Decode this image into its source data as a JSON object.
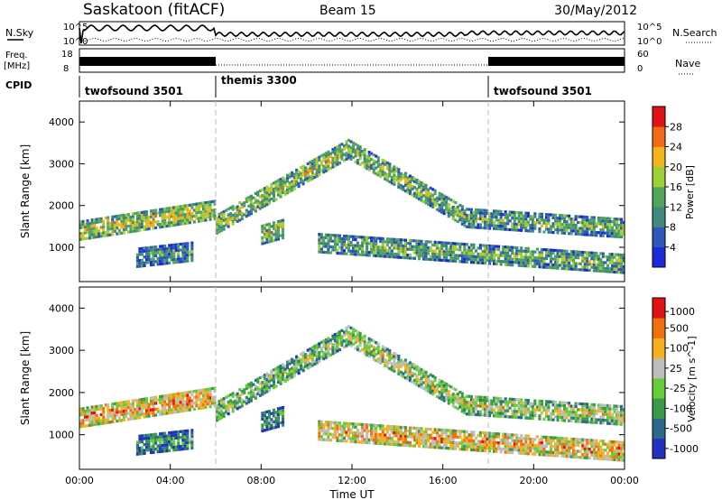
{
  "header": {
    "station": "Saskatoon (fitACF)",
    "beam": "Beam 15",
    "date": "30/May/2012"
  },
  "strips": {
    "nsky_label": "N.Sky",
    "nsearch_label": "N.Search",
    "noise_ticks": [
      "10^5",
      "10^0"
    ],
    "freq_label_1": "Freq.",
    "freq_label_2": "[MHz]",
    "freq_ticks": [
      "18",
      "8"
    ],
    "nave_label": "Nave",
    "nave_ticks": [
      "60",
      "0"
    ],
    "cpid_label": "CPID"
  },
  "cpid_segments": [
    {
      "name": "twofsound 3501",
      "start_h": 0,
      "end_h": 6
    },
    {
      "name": "themis 3300",
      "start_h": 6,
      "end_h": 18
    },
    {
      "name": "twofsound 3501",
      "start_h": 18,
      "end_h": 24
    }
  ],
  "axes": {
    "xlabel": "Time UT",
    "ylabel": "Slant Range [km]",
    "x_ticks": [
      "00:00",
      "04:00",
      "08:00",
      "12:00",
      "16:00",
      "20:00",
      "00:00"
    ],
    "y_ticks": [
      "1000",
      "2000",
      "3000",
      "4000"
    ]
  },
  "chart_data": [
    {
      "type": "heatmap",
      "panel": "power",
      "x_range_hours": [
        0,
        24
      ],
      "y_range_km": [
        180,
        4500
      ],
      "colorbar_label": "Power [dB]",
      "colorbar_ticks": [
        "4",
        "8",
        "12",
        "16",
        "20",
        "24",
        "28"
      ],
      "colors": [
        "#1e2ad8",
        "#2d57b8",
        "#3f8a7a",
        "#52a35e",
        "#9ecf36",
        "#f2b41c",
        "#f06a1a",
        "#e01414"
      ],
      "bands": [
        {
          "t_start": 0,
          "t_end": 6,
          "r_start": 1400,
          "r_end": 1900,
          "level": 0.55
        },
        {
          "t_start": 6,
          "t_end": 11.8,
          "r_start": 1550,
          "r_end": 3350,
          "level": 0.5
        },
        {
          "t_start": 11.8,
          "t_end": 17,
          "r_start": 3350,
          "r_end": 1700,
          "level": 0.45
        },
        {
          "t_start": 17,
          "t_end": 24,
          "r_start": 1700,
          "r_end": 1450,
          "level": 0.4
        },
        {
          "t_start": 2.5,
          "t_end": 5,
          "r_start": 750,
          "r_end": 900,
          "level": 0.3
        },
        {
          "t_start": 8,
          "t_end": 9,
          "r_start": 1300,
          "r_end": 1450,
          "level": 0.5
        },
        {
          "t_start": 10.5,
          "t_end": 24,
          "r_start": 1100,
          "r_end": 600,
          "level": 0.4
        }
      ]
    },
    {
      "type": "heatmap",
      "panel": "velocity",
      "x_range_hours": [
        0,
        24
      ],
      "y_range_km": [
        180,
        4500
      ],
      "colorbar_label": "Velocity [m s^-1]",
      "colorbar_ticks": [
        "1000",
        "500",
        "100",
        "25",
        "-25",
        "-100",
        "-500",
        "-1000"
      ],
      "colors": [
        "#2232c0",
        "#2c6a8c",
        "#3a9a4a",
        "#66cc3a",
        "#bdbdbd",
        "#f5b020",
        "#f07010",
        "#e01414"
      ],
      "bands": [
        {
          "t_start": 0,
          "t_end": 6,
          "r_start": 1400,
          "r_end": 1900,
          "level": 0.7
        },
        {
          "t_start": 6,
          "t_end": 11.8,
          "r_start": 1550,
          "r_end": 3350,
          "level": 0.45
        },
        {
          "t_start": 11.8,
          "t_end": 17,
          "r_start": 3350,
          "r_end": 1700,
          "level": 0.5
        },
        {
          "t_start": 17,
          "t_end": 24,
          "r_start": 1700,
          "r_end": 1450,
          "level": 0.5
        },
        {
          "t_start": 2.5,
          "t_end": 5,
          "r_start": 750,
          "r_end": 900,
          "level": 0.25
        },
        {
          "t_start": 8,
          "t_end": 9,
          "r_start": 1300,
          "r_end": 1450,
          "level": 0.3
        },
        {
          "t_start": 10.5,
          "t_end": 24,
          "r_start": 1100,
          "r_end": 600,
          "level": 0.65
        }
      ]
    }
  ]
}
